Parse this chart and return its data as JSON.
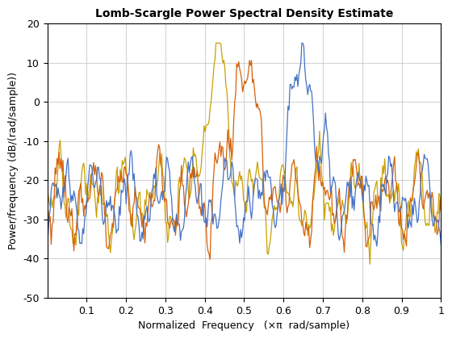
{
  "title": "Lomb-Scargle Power Spectral Density Estimate",
  "xlabel": "Normalized  Frequency   (×π  rad/sample)",
  "ylabel": "Power/frequency (dB/(rad/sample))",
  "xlim": [
    0,
    1.0
  ],
  "ylim": [
    -50,
    20
  ],
  "yticks": [
    -50,
    -40,
    -30,
    -20,
    -10,
    0,
    10,
    20
  ],
  "xticks": [
    0.1,
    0.2,
    0.3,
    0.4,
    0.5,
    0.6,
    0.7,
    0.8,
    0.9,
    1.0
  ],
  "line_colors": [
    "#4472C4",
    "#D4600A",
    "#C8A000"
  ],
  "linewidth": 0.9,
  "peak1_freq": 0.65,
  "peak2_freq": 0.5,
  "peak3_freq": 0.43,
  "peak_db": 10.0,
  "noise_floor": -25.0,
  "background_color": "#FFFFFF",
  "title_fontsize": 10,
  "label_fontsize": 9,
  "tick_fontsize": 9
}
